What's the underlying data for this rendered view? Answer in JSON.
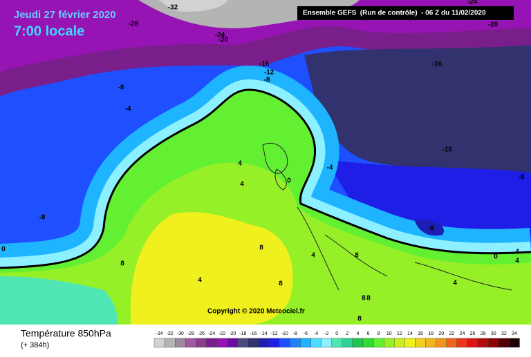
{
  "header": {
    "date": "Jeudi 27 février 2020",
    "time": "7:00 locale",
    "model": "Ensemble GEFS  (Run de contrôle)  - 06 Z du 11/02/2020",
    "copyright": "Copyright © 2020 Meteociel.fr"
  },
  "legend": {
    "title": "Température 850hPa",
    "lead": "(+ 384h)",
    "steps": [
      {
        "value": -34,
        "color": "#d2d2d2"
      },
      {
        "value": -32,
        "color": "#b4b4b4"
      },
      {
        "value": -30,
        "color": "#9a8a9a"
      },
      {
        "value": -28,
        "color": "#a05aa0"
      },
      {
        "value": -26,
        "color": "#8c3c8c"
      },
      {
        "value": -24,
        "color": "#7a1e8c"
      },
      {
        "value": -22,
        "color": "#9614b4"
      },
      {
        "value": -20,
        "color": "#6e0aa0"
      },
      {
        "value": -18,
        "color": "#4b4b7d"
      },
      {
        "value": -16,
        "color": "#32326e"
      },
      {
        "value": -14,
        "color": "#1e1eb4"
      },
      {
        "value": -12,
        "color": "#1e1ee6"
      },
      {
        "value": -10,
        "color": "#1e50ff"
      },
      {
        "value": -8,
        "color": "#1e82ff"
      },
      {
        "value": -6,
        "color": "#1eb4ff"
      },
      {
        "value": -4,
        "color": "#50dcff"
      },
      {
        "value": -2,
        "color": "#8cf0ff"
      },
      {
        "value": 0,
        "color": "#50e6b4"
      },
      {
        "value": 2,
        "color": "#32d296"
      },
      {
        "value": 4,
        "color": "#1ec850"
      },
      {
        "value": 6,
        "color": "#32dc32"
      },
      {
        "value": 8,
        "color": "#64f032"
      },
      {
        "value": 10,
        "color": "#96f028"
      },
      {
        "value": 12,
        "color": "#c8f01e"
      },
      {
        "value": 14,
        "color": "#f0f01e"
      },
      {
        "value": 16,
        "color": "#f0d21e"
      },
      {
        "value": 18,
        "color": "#f0b41e"
      },
      {
        "value": 20,
        "color": "#f0961e"
      },
      {
        "value": 22,
        "color": "#f0641e"
      },
      {
        "value": 24,
        "color": "#f0321e"
      },
      {
        "value": 26,
        "color": "#dc1414"
      },
      {
        "value": 28,
        "color": "#b40a0a"
      },
      {
        "value": 30,
        "color": "#8c0000"
      },
      {
        "value": 32,
        "color": "#500000"
      },
      {
        "value": 34,
        "color": "#1e0000"
      }
    ]
  },
  "contour_labels": [
    -32,
    -28,
    -24,
    -20,
    -24,
    -20,
    -16,
    -12,
    -8,
    -16,
    -8,
    -4,
    4,
    4,
    0,
    -4,
    -16,
    -8,
    -8,
    -8,
    0,
    8,
    8,
    4,
    8,
    0,
    4,
    4,
    4,
    8,
    4,
    8,
    8,
    8
  ]
}
